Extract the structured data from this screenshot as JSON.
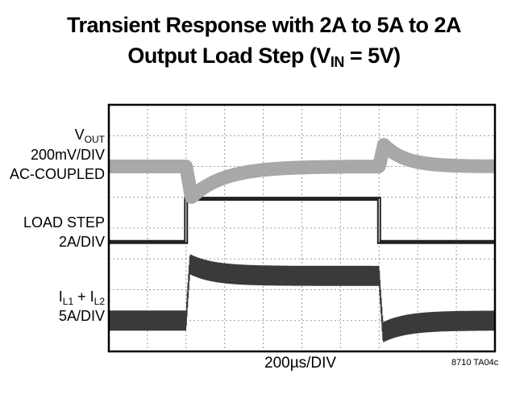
{
  "chart_data": {
    "type": "line",
    "title_line1": "Transient Response with 2A to 5A to 2A",
    "title_line2_prefix": "Output Load Step (V",
    "title_line2_sub": "IN",
    "title_line2_suffix": " = 5V)",
    "x_divisions": 10,
    "y_divisions": 8,
    "grid": true,
    "xlabel": "200µs/DIV",
    "figure_code": "8710 TA04c",
    "time_unit": "µs",
    "step_up_time_us": 400,
    "step_down_time_us": 1400,
    "series": [
      {
        "name": "VOUT",
        "label_main": "V",
        "label_sub": "OUT",
        "scale": "200mV/DIV",
        "coupling": "AC-COUPLED",
        "color": "#a8a8a8",
        "baseline_div": 6.0,
        "undershoot_div": -1.0,
        "overshoot_div": 0.7
      },
      {
        "name": "LOAD STEP",
        "label_main": "LOAD STEP",
        "scale": "2A/DIV",
        "color": "#222222",
        "low_A": 2,
        "high_A": 5,
        "low_div": 3.55,
        "high_div": 4.95
      },
      {
        "name": "IL1 + IL2",
        "label_a": "I",
        "label_a_sub": "L1",
        "label_plus": " + I",
        "label_b_sub": "L2",
        "scale": "5A/DIV",
        "color": "#3a3a3a",
        "low_div": 1.0,
        "high_div": 2.45,
        "ripple_div": 0.65
      }
    ]
  }
}
